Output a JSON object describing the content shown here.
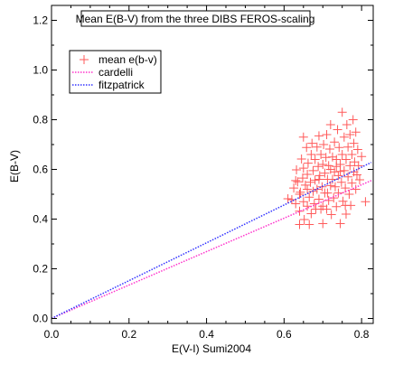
{
  "chart_data": {
    "type": "scatter",
    "title": "Mean E(B-V) from the three DIBS FEROS-scaling",
    "xlabel": "E(V-I) Sumi2004",
    "ylabel": "E(B-V)",
    "xlim": [
      0.0,
      0.83
    ],
    "ylim": [
      -0.02,
      1.26
    ],
    "xticks": [
      "0.0",
      "0.2",
      "0.4",
      "0.6",
      "0.8"
    ],
    "yticks": [
      "0.0",
      "0.2",
      "0.4",
      "0.6",
      "0.8",
      "1.0",
      "1.2"
    ],
    "grid": false,
    "legend_position": "top-left",
    "series": [
      {
        "name": "mean e(b-v)",
        "kind": "scatter",
        "marker": "plus",
        "color": "#ff5a5a",
        "points": [
          [
            0.61,
            0.482
          ],
          [
            0.62,
            0.478
          ],
          [
            0.625,
            0.525
          ],
          [
            0.63,
            0.462
          ],
          [
            0.632,
            0.598
          ],
          [
            0.635,
            0.55
          ],
          [
            0.64,
            0.432
          ],
          [
            0.64,
            0.378
          ],
          [
            0.642,
            0.508
          ],
          [
            0.645,
            0.642
          ],
          [
            0.648,
            0.565
          ],
          [
            0.65,
            0.47
          ],
          [
            0.65,
            0.605
          ],
          [
            0.652,
            0.398
          ],
          [
            0.655,
            0.537
          ],
          [
            0.658,
            0.688
          ],
          [
            0.66,
            0.452
          ],
          [
            0.66,
            0.58
          ],
          [
            0.662,
            0.625
          ],
          [
            0.665,
            0.488
          ],
          [
            0.665,
            0.378
          ],
          [
            0.668,
            0.548
          ],
          [
            0.67,
            0.66
          ],
          [
            0.67,
            0.422
          ],
          [
            0.672,
            0.705
          ],
          [
            0.675,
            0.512
          ],
          [
            0.675,
            0.595
          ],
          [
            0.678,
            0.462
          ],
          [
            0.68,
            0.64
          ],
          [
            0.68,
            0.557
          ],
          [
            0.682,
            0.44
          ],
          [
            0.685,
            0.69
          ],
          [
            0.685,
            0.52
          ],
          [
            0.688,
            0.612
          ],
          [
            0.69,
            0.48
          ],
          [
            0.69,
            0.735
          ],
          [
            0.692,
            0.575
          ],
          [
            0.695,
            0.44
          ],
          [
            0.695,
            0.66
          ],
          [
            0.698,
            0.53
          ],
          [
            0.7,
            0.62
          ],
          [
            0.7,
            0.452
          ],
          [
            0.702,
            0.7
          ],
          [
            0.705,
            0.585
          ],
          [
            0.705,
            0.505
          ],
          [
            0.708,
            0.648
          ],
          [
            0.71,
            0.44
          ],
          [
            0.71,
            0.74
          ],
          [
            0.712,
            0.56
          ],
          [
            0.715,
            0.615
          ],
          [
            0.715,
            0.475
          ],
          [
            0.718,
            0.682
          ],
          [
            0.72,
            0.535
          ],
          [
            0.72,
            0.6
          ],
          [
            0.722,
            0.418
          ],
          [
            0.725,
            0.65
          ],
          [
            0.725,
            0.56
          ],
          [
            0.728,
            0.485
          ],
          [
            0.73,
            0.71
          ],
          [
            0.73,
            0.59
          ],
          [
            0.732,
            0.53
          ],
          [
            0.735,
            0.64
          ],
          [
            0.735,
            0.45
          ],
          [
            0.738,
            0.76
          ],
          [
            0.74,
            0.575
          ],
          [
            0.74,
            0.505
          ],
          [
            0.742,
            0.688
          ],
          [
            0.745,
            0.62
          ],
          [
            0.745,
            0.382
          ],
          [
            0.748,
            0.548
          ],
          [
            0.75,
            0.83
          ],
          [
            0.75,
            0.66
          ],
          [
            0.752,
            0.472
          ],
          [
            0.755,
            0.595
          ],
          [
            0.755,
            0.73
          ],
          [
            0.758,
            0.525
          ],
          [
            0.76,
            0.64
          ],
          [
            0.76,
            0.42
          ],
          [
            0.762,
            0.78
          ],
          [
            0.765,
            0.57
          ],
          [
            0.765,
            0.69
          ],
          [
            0.768,
            0.5
          ],
          [
            0.77,
            0.615
          ],
          [
            0.77,
            0.74
          ],
          [
            0.772,
            0.455
          ],
          [
            0.775,
            0.66
          ],
          [
            0.775,
            0.545
          ],
          [
            0.778,
            0.8
          ],
          [
            0.78,
            0.59
          ],
          [
            0.78,
            0.705
          ],
          [
            0.782,
            0.63
          ],
          [
            0.785,
            0.52
          ],
          [
            0.785,
            0.75
          ],
          [
            0.788,
            0.578
          ],
          [
            0.79,
            0.68
          ],
          [
            0.792,
            0.615
          ],
          [
            0.795,
            0.558
          ],
          [
            0.8,
            0.652
          ],
          [
            0.81,
            0.47
          ],
          [
            0.65,
            0.73
          ],
          [
            0.66,
            0.52
          ],
          [
            0.7,
            0.382
          ],
          [
            0.69,
            0.56
          ],
          [
            0.72,
            0.78
          ],
          [
            0.64,
            0.5
          ],
          [
            0.63,
            0.555
          ],
          [
            0.745,
            0.592
          ],
          [
            0.758,
            0.455
          ],
          [
            0.735,
            0.612
          ],
          [
            0.712,
            0.505
          ]
        ]
      },
      {
        "name": "cardelli",
        "kind": "line",
        "style": "dotted",
        "color": "#ff33cc",
        "x": [
          0.0,
          0.825
        ],
        "y": [
          0.0,
          0.555
        ]
      },
      {
        "name": "fitzpatrick",
        "kind": "line",
        "style": "dotted",
        "color": "#3333ff",
        "x": [
          0.0,
          0.825
        ],
        "y": [
          0.0,
          0.628
        ]
      }
    ]
  }
}
